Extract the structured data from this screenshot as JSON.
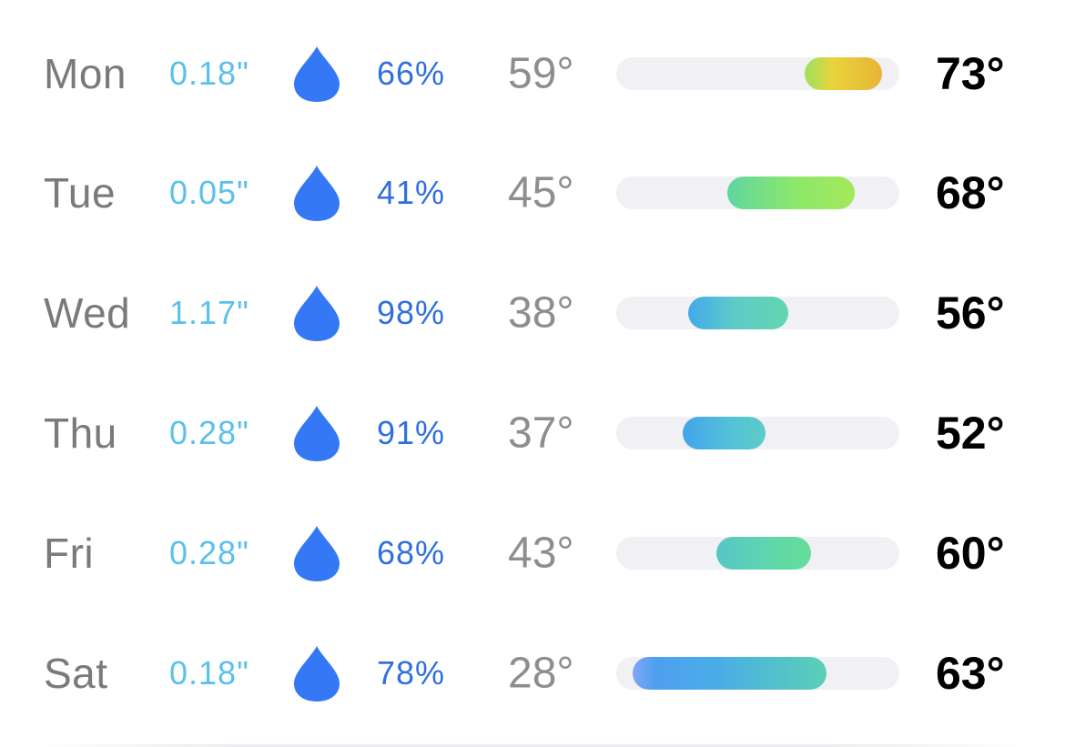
{
  "colors": {
    "precip_amount": "#5ac1ec",
    "drop": "#3478f6",
    "chance": "#2f6fe0",
    "low": "#8e8e8e",
    "high": "#000000",
    "track": "#f0f0f5"
  },
  "icons": {
    "precip": "raindrop-icon"
  },
  "forecast": [
    {
      "day": "Mon",
      "precip": "0.18\"",
      "chance": "66%",
      "low": "59°",
      "high": "73°",
      "low_value": 59,
      "high_value": 73
    },
    {
      "day": "Tue",
      "precip": "0.05\"",
      "chance": "41%",
      "low": "45°",
      "high": "68°",
      "low_value": 45,
      "high_value": 68
    },
    {
      "day": "Wed",
      "precip": "1.17\"",
      "chance": "98%",
      "low": "38°",
      "high": "56°",
      "low_value": 38,
      "high_value": 56
    },
    {
      "day": "Thu",
      "precip": "0.28\"",
      "chance": "91%",
      "low": "37°",
      "high": "52°",
      "low_value": 37,
      "high_value": 52
    },
    {
      "day": "Fri",
      "precip": "0.28\"",
      "chance": "68%",
      "low": "43°",
      "high": "60°",
      "low_value": 43,
      "high_value": 60
    },
    {
      "day": "Sat",
      "precip": "0.18\"",
      "chance": "78%",
      "low": "28°",
      "high": "63°",
      "low_value": 28,
      "high_value": 63
    }
  ]
}
